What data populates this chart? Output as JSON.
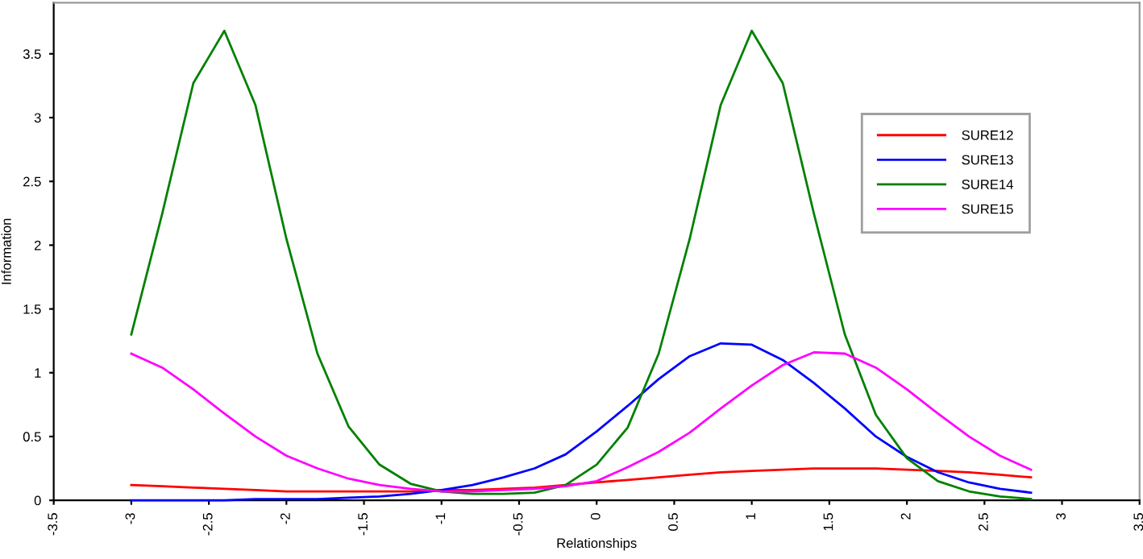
{
  "chart_data": {
    "type": "line",
    "xlabel": "Relationships",
    "ylabel": "Information",
    "x": [
      -3,
      -2.8,
      -2.6,
      -2.4,
      -2.2,
      -2,
      -1.8,
      -1.6,
      -1.4,
      -1.2,
      -1,
      -0.8,
      -0.6,
      -0.4,
      -0.2,
      0,
      0.2,
      0.4,
      0.6,
      0.8,
      1,
      1.2,
      1.4,
      1.6,
      1.8,
      2,
      2.2,
      2.4,
      2.6,
      2.8
    ],
    "series": [
      {
        "name": "SURE12",
        "color": "#ff0000",
        "values": [
          0.12,
          0.11,
          0.1,
          0.09,
          0.08,
          0.07,
          0.07,
          0.07,
          0.07,
          0.07,
          0.08,
          0.08,
          0.09,
          0.1,
          0.12,
          0.14,
          0.16,
          0.18,
          0.2,
          0.22,
          0.23,
          0.24,
          0.25,
          0.25,
          0.25,
          0.24,
          0.23,
          0.22,
          0.2,
          0.18
        ]
      },
      {
        "name": "SURE13",
        "color": "#0000ff",
        "values": [
          0.0,
          0.0,
          0.0,
          0.0,
          0.01,
          0.01,
          0.01,
          0.02,
          0.03,
          0.05,
          0.08,
          0.12,
          0.18,
          0.25,
          0.36,
          0.54,
          0.74,
          0.95,
          1.13,
          1.23,
          1.22,
          1.1,
          0.92,
          0.72,
          0.5,
          0.34,
          0.22,
          0.14,
          0.09,
          0.06
        ]
      },
      {
        "name": "SURE14",
        "color": "#008000",
        "values": [
          1.3,
          2.25,
          3.27,
          3.68,
          3.1,
          2.05,
          1.15,
          0.58,
          0.28,
          0.13,
          0.07,
          0.05,
          0.05,
          0.06,
          0.12,
          0.28,
          0.57,
          1.15,
          2.05,
          3.1,
          3.68,
          3.27,
          2.25,
          1.3,
          0.67,
          0.33,
          0.15,
          0.07,
          0.03,
          0.01
        ]
      },
      {
        "name": "SURE15",
        "color": "#ff00ff",
        "values": [
          1.15,
          1.04,
          0.87,
          0.68,
          0.5,
          0.35,
          0.25,
          0.17,
          0.12,
          0.09,
          0.07,
          0.07,
          0.08,
          0.09,
          0.11,
          0.15,
          0.26,
          0.38,
          0.53,
          0.72,
          0.9,
          1.06,
          1.16,
          1.15,
          1.04,
          0.87,
          0.68,
          0.5,
          0.35,
          0.24
        ]
      }
    ],
    "xlim": [
      -3.5,
      3.5
    ],
    "ylim": [
      0,
      3.9
    ],
    "xticks": [
      -3.5,
      -3,
      -2.5,
      -2,
      -1.5,
      -1,
      -0.5,
      0,
      0.5,
      1,
      1.5,
      2,
      2.5,
      3,
      3.5
    ],
    "yticks": [
      0,
      0.5,
      1,
      1.5,
      2,
      2.5,
      3,
      3.5
    ],
    "grid": false,
    "legend": "top right",
    "marker": "none",
    "line_style": "solid"
  }
}
